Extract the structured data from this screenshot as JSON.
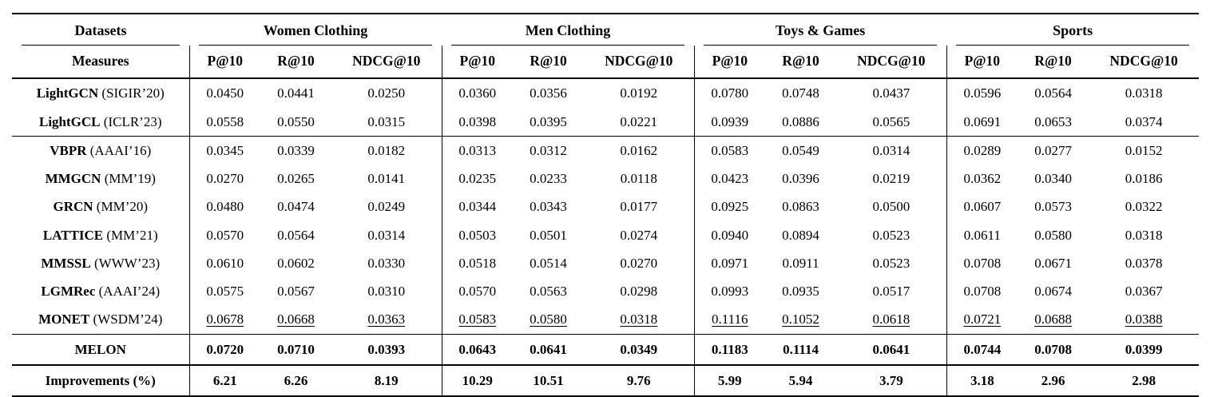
{
  "table": {
    "header": {
      "datasets_label": "Datasets",
      "measures_label": "Measures",
      "groups": [
        {
          "label": "Women Clothing"
        },
        {
          "label": "Men Clothing"
        },
        {
          "label": "Toys & Games"
        },
        {
          "label": "Sports"
        }
      ],
      "metrics": [
        "P@10",
        "R@10",
        "NDCG@10"
      ]
    },
    "row_groups": [
      {
        "rows": [
          {
            "name": "LightGCN",
            "venue": "(SIGIR’20)",
            "emphasis": "none",
            "values": [
              "0.0450",
              "0.0441",
              "0.0250",
              "0.0360",
              "0.0356",
              "0.0192",
              "0.0780",
              "0.0748",
              "0.0437",
              "0.0596",
              "0.0564",
              "0.0318"
            ]
          },
          {
            "name": "LightGCL",
            "venue": "(ICLR’23)",
            "emphasis": "none",
            "values": [
              "0.0558",
              "0.0550",
              "0.0315",
              "0.0398",
              "0.0395",
              "0.0221",
              "0.0939",
              "0.0886",
              "0.0565",
              "0.0691",
              "0.0653",
              "0.0374"
            ]
          }
        ]
      },
      {
        "rows": [
          {
            "name": "VBPR",
            "venue": "(AAAI’16)",
            "emphasis": "none",
            "values": [
              "0.0345",
              "0.0339",
              "0.0182",
              "0.0313",
              "0.0312",
              "0.0162",
              "0.0583",
              "0.0549",
              "0.0314",
              "0.0289",
              "0.0277",
              "0.0152"
            ]
          },
          {
            "name": "MMGCN",
            "venue": "(MM’19)",
            "emphasis": "none",
            "values": [
              "0.0270",
              "0.0265",
              "0.0141",
              "0.0235",
              "0.0233",
              "0.0118",
              "0.0423",
              "0.0396",
              "0.0219",
              "0.0362",
              "0.0340",
              "0.0186"
            ]
          },
          {
            "name": "GRCN",
            "venue": "(MM’20)",
            "emphasis": "none",
            "values": [
              "0.0480",
              "0.0474",
              "0.0249",
              "0.0344",
              "0.0343",
              "0.0177",
              "0.0925",
              "0.0863",
              "0.0500",
              "0.0607",
              "0.0573",
              "0.0322"
            ]
          },
          {
            "name": "LATTICE",
            "venue": "(MM’21)",
            "emphasis": "none",
            "values": [
              "0.0570",
              "0.0564",
              "0.0314",
              "0.0503",
              "0.0501",
              "0.0274",
              "0.0940",
              "0.0894",
              "0.0523",
              "0.0611",
              "0.0580",
              "0.0318"
            ]
          },
          {
            "name": "MMSSL",
            "venue": "(WWW’23)",
            "emphasis": "none",
            "values": [
              "0.0610",
              "0.0602",
              "0.0330",
              "0.0518",
              "0.0514",
              "0.0270",
              "0.0971",
              "0.0911",
              "0.0523",
              "0.0708",
              "0.0671",
              "0.0378"
            ]
          },
          {
            "name": "LGMRec",
            "venue": "(AAAI’24)",
            "emphasis": "none",
            "values": [
              "0.0575",
              "0.0567",
              "0.0310",
              "0.0570",
              "0.0563",
              "0.0298",
              "0.0993",
              "0.0935",
              "0.0517",
              "0.0708",
              "0.0674",
              "0.0367"
            ]
          },
          {
            "name": "MONET",
            "venue": "(WSDM’24)",
            "emphasis": "underline",
            "values": [
              "0.0678",
              "0.0668",
              "0.0363",
              "0.0583",
              "0.0580",
              "0.0318",
              "0.1116",
              "0.1052",
              "0.0618",
              "0.0721",
              "0.0688",
              "0.0388"
            ]
          }
        ]
      },
      {
        "rows": [
          {
            "name": "MELON",
            "venue": "",
            "emphasis": "bold",
            "values": [
              "0.0720",
              "0.0710",
              "0.0393",
              "0.0643",
              "0.0641",
              "0.0349",
              "0.1183",
              "0.1114",
              "0.0641",
              "0.0744",
              "0.0708",
              "0.0399"
            ]
          }
        ]
      },
      {
        "rows": [
          {
            "name": "Improvements (%)",
            "venue": "",
            "emphasis": "bold",
            "values": [
              "6.21",
              "6.26",
              "8.19",
              "10.29",
              "10.51",
              "9.76",
              "5.99",
              "5.94",
              "3.79",
              "3.18",
              "2.96",
              "2.98"
            ]
          }
        ]
      }
    ]
  }
}
